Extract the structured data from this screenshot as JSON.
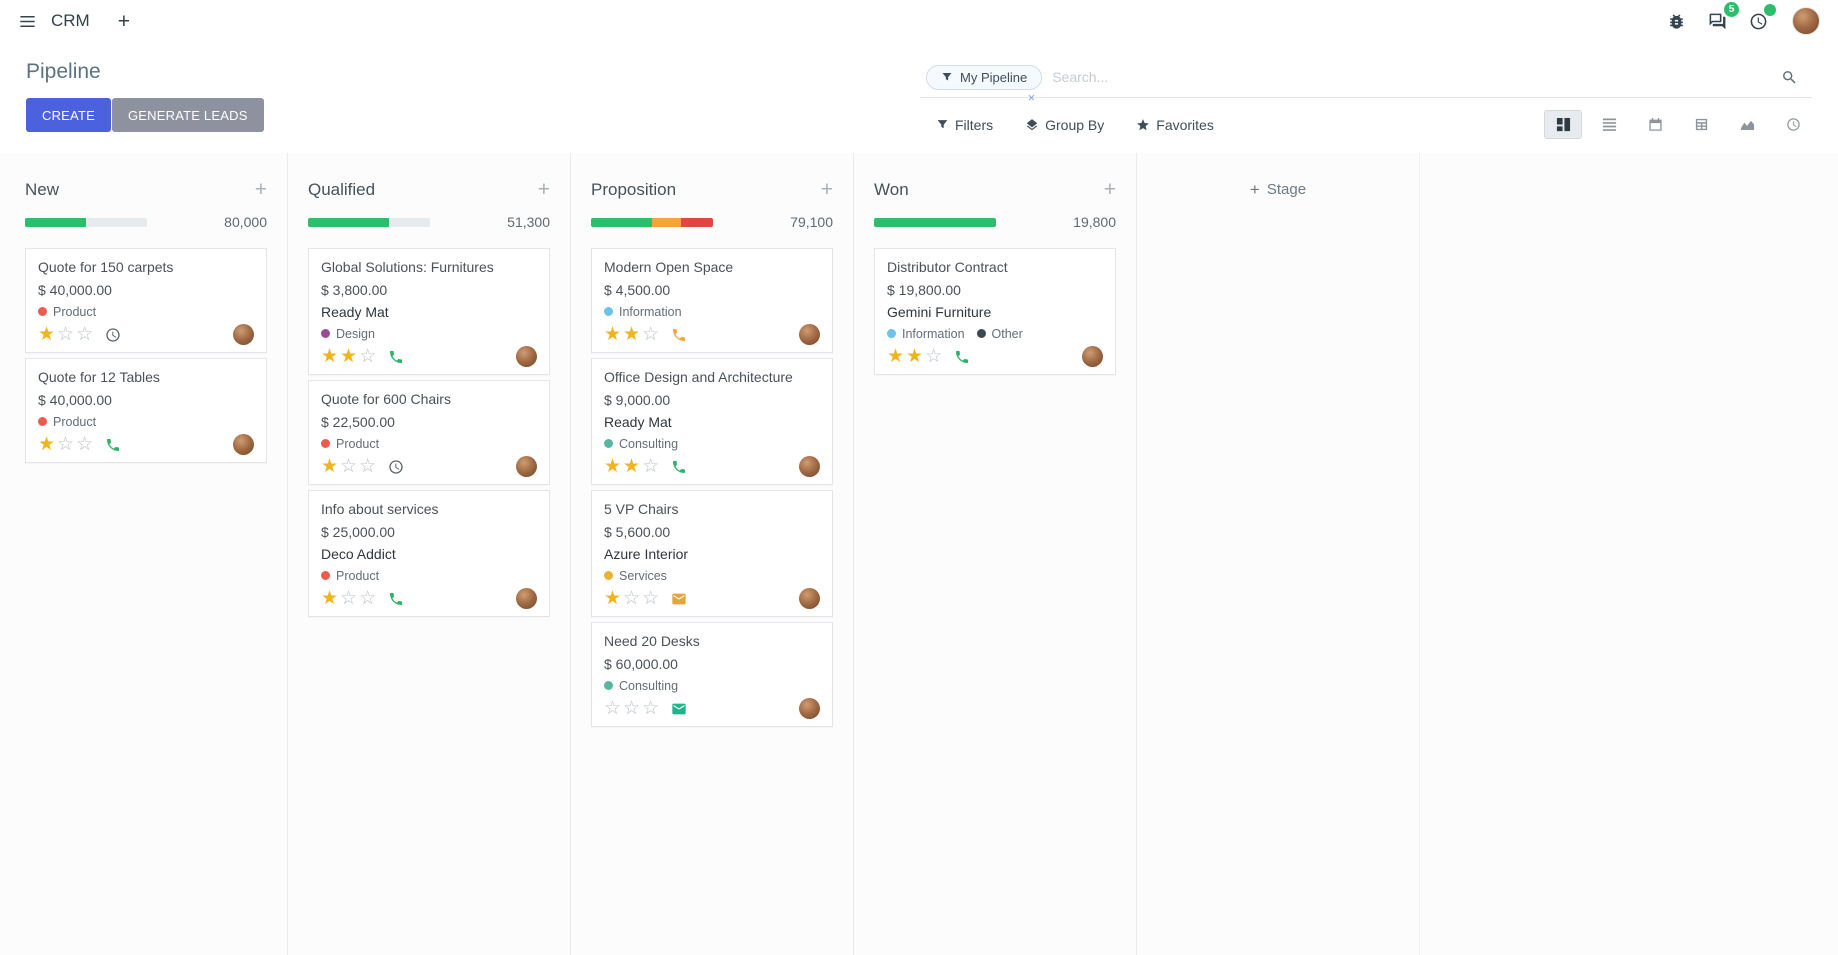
{
  "navbar": {
    "app": "CRM",
    "message_badge": "5"
  },
  "control_panel": {
    "title": "Pipeline",
    "create": "CREATE",
    "generate_leads": "GENERATE LEADS",
    "filters": "Filters",
    "group_by": "Group By",
    "favorites": "Favorites",
    "search_facet": "My Pipeline",
    "search_placeholder": "Search...",
    "facet_remove": "×"
  },
  "board": {
    "add_stage": "Stage",
    "columns": [
      {
        "name": "New",
        "total": "80,000",
        "progress": [
          {
            "color": "#2ebd6b",
            "pct": 50
          },
          {
            "color": "#e8ebee",
            "pct": 50
          }
        ],
        "cards": [
          {
            "title": "Quote for 150 carpets",
            "amount": "$ 40,000.00",
            "partner": null,
            "tags": [
              {
                "label": "Product",
                "color": "#ef5a4e"
              }
            ],
            "stars_filled": 1,
            "stars_total": 3,
            "activity": {
              "icon": "clock-icon",
              "color": "#59636b"
            }
          },
          {
            "title": "Quote for 12 Tables",
            "amount": "$ 40,000.00",
            "partner": null,
            "tags": [
              {
                "label": "Product",
                "color": "#ef5a4e"
              }
            ],
            "stars_filled": 1,
            "stars_total": 3,
            "activity": {
              "icon": "phone-icon",
              "color": "#2cb566"
            }
          }
        ]
      },
      {
        "name": "Qualified",
        "total": "51,300",
        "progress": [
          {
            "color": "#2ebd6b",
            "pct": 66
          },
          {
            "color": "#e8ebee",
            "pct": 34
          }
        ],
        "cards": [
          {
            "title": "Global Solutions: Furnitures",
            "amount": "$ 3,800.00",
            "partner": "Ready Mat",
            "tags": [
              {
                "label": "Design",
                "color": "#9b4a97"
              }
            ],
            "stars_filled": 2,
            "stars_total": 3,
            "activity": {
              "icon": "phone-icon",
              "color": "#2cb566"
            }
          },
          {
            "title": "Quote for 600 Chairs",
            "amount": "$ 22,500.00",
            "partner": null,
            "tags": [
              {
                "label": "Product",
                "color": "#ef5a4e"
              }
            ],
            "stars_filled": 1,
            "stars_total": 3,
            "activity": {
              "icon": "clock-icon",
              "color": "#59636b"
            }
          },
          {
            "title": "Info about services",
            "amount": "$ 25,000.00",
            "partner": "Deco Addict",
            "tags": [
              {
                "label": "Product",
                "color": "#ef5a4e"
              }
            ],
            "stars_filled": 1,
            "stars_total": 3,
            "activity": {
              "icon": "phone-icon",
              "color": "#2cb566"
            }
          }
        ]
      },
      {
        "name": "Proposition",
        "total": "79,100",
        "progress": [
          {
            "color": "#2ebd6b",
            "pct": 50
          },
          {
            "color": "#f0a63c",
            "pct": 24
          },
          {
            "color": "#e0483e",
            "pct": 26
          }
        ],
        "cards": [
          {
            "title": "Modern Open Space",
            "amount": "$ 4,500.00",
            "partner": null,
            "tags": [
              {
                "label": "Information",
                "color": "#6cc1ed"
              }
            ],
            "stars_filled": 2,
            "stars_total": 3,
            "activity": {
              "icon": "phone-icon",
              "color": "#f0a63c"
            }
          },
          {
            "title": "Office Design and Architecture",
            "amount": "$ 9,000.00",
            "partner": "Ready Mat",
            "tags": [
              {
                "label": "Consulting",
                "color": "#57b8a2"
              }
            ],
            "stars_filled": 2,
            "stars_total": 3,
            "activity": {
              "icon": "phone-icon",
              "color": "#2cb566"
            }
          },
          {
            "title": "5 VP Chairs",
            "amount": "$ 5,600.00",
            "partner": "Azure Interior",
            "tags": [
              {
                "label": "Services",
                "color": "#e5b530"
              }
            ],
            "stars_filled": 1,
            "stars_total": 3,
            "activity": {
              "icon": "envelope-icon",
              "color": "#e8a33b"
            }
          },
          {
            "title": "Need 20 Desks",
            "amount": "$ 60,000.00",
            "partner": null,
            "tags": [
              {
                "label": "Consulting",
                "color": "#57b8a2"
              }
            ],
            "stars_filled": 0,
            "stars_total": 3,
            "activity": {
              "icon": "envelope-icon",
              "color": "#23b38c"
            }
          }
        ]
      },
      {
        "name": "Won",
        "total": "19,800",
        "progress": [
          {
            "color": "#2ebd6b",
            "pct": 100
          }
        ],
        "cards": [
          {
            "title": "Distributor Contract",
            "amount": "$ 19,800.00",
            "partner": "Gemini Furniture",
            "tags": [
              {
                "label": "Information",
                "color": "#6cc1ed"
              },
              {
                "label": "Other",
                "color": "#3b4752"
              }
            ],
            "stars_filled": 2,
            "stars_total": 3,
            "activity": {
              "icon": "phone-icon",
              "color": "#2cb566"
            }
          }
        ]
      }
    ]
  }
}
